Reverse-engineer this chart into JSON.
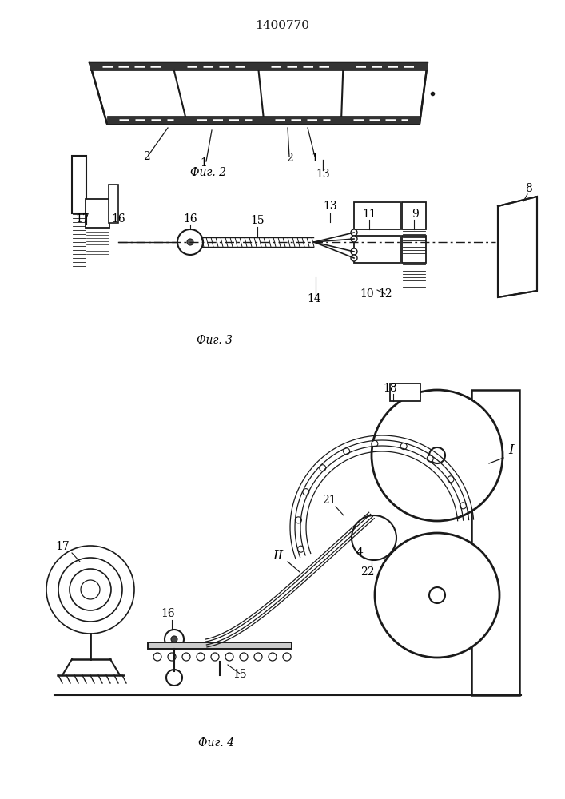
{
  "title": "1400770",
  "title_fontsize": 11,
  "fig2_label": "Фиг. 2",
  "fig3_label": "Фиг. 3",
  "fig4_label": "Фиг. 4",
  "bg_color": "#ffffff",
  "line_color": "#1a1a1a",
  "fig_width": 7.07,
  "fig_height": 10.0
}
